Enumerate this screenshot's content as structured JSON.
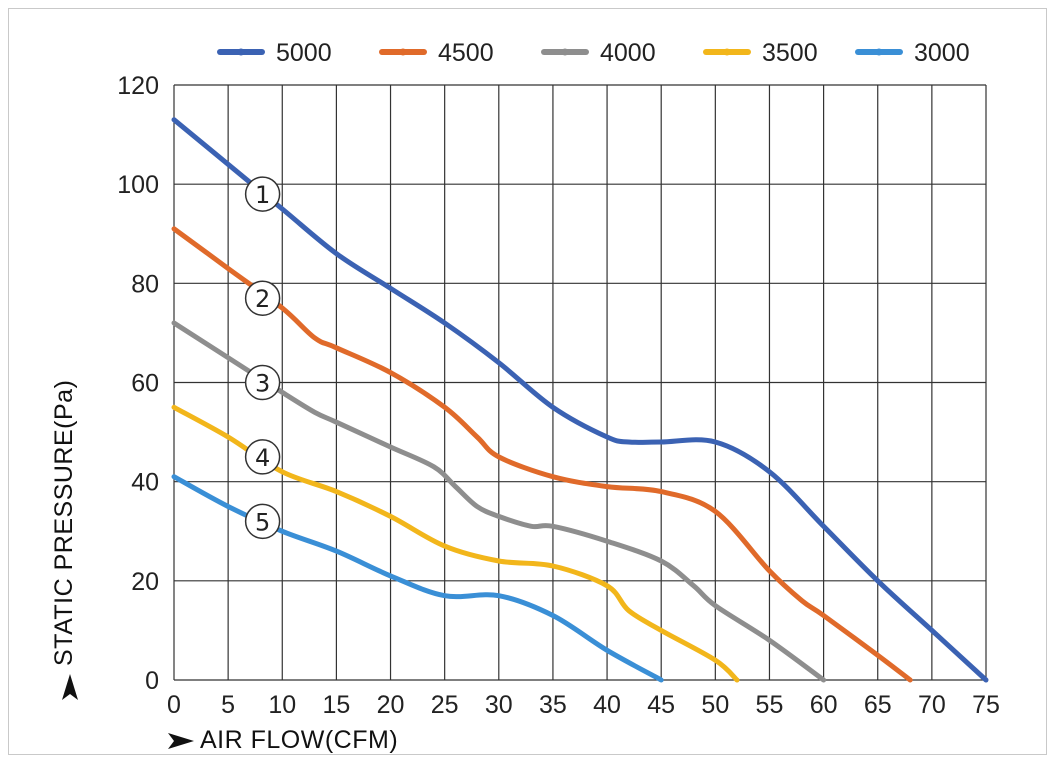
{
  "chart_data": {
    "type": "line",
    "xlabel": "AIR FLOW(CFM)",
    "ylabel": "STATIC PRESSURE(Pa)",
    "xlim": [
      0,
      75
    ],
    "ylim": [
      0,
      120
    ],
    "x_ticks": [
      "0",
      "5",
      "10",
      "15",
      "20",
      "25",
      "30",
      "35",
      "40",
      "45",
      "50",
      "55",
      "60",
      "65",
      "70",
      "75"
    ],
    "y_ticks": [
      "0",
      "20",
      "40",
      "60",
      "80",
      "100",
      "120"
    ],
    "grid": true,
    "legend_position": "top",
    "series": [
      {
        "name": "5000",
        "color": "#3b62b3",
        "marker": "①",
        "marker_x": 8,
        "marker_y": 98,
        "points": [
          [
            0,
            113
          ],
          [
            5,
            104
          ],
          [
            10,
            95
          ],
          [
            15,
            86
          ],
          [
            20,
            79
          ],
          [
            25,
            72
          ],
          [
            30,
            64
          ],
          [
            35,
            55
          ],
          [
            40,
            49
          ],
          [
            42,
            48
          ],
          [
            45,
            48
          ],
          [
            50,
            48
          ],
          [
            55,
            42
          ],
          [
            60,
            31
          ],
          [
            65,
            20
          ],
          [
            70,
            10
          ],
          [
            75,
            0
          ]
        ]
      },
      {
        "name": "4500",
        "color": "#e06a2a",
        "marker": "②",
        "marker_x": 8,
        "marker_y": 77,
        "points": [
          [
            0,
            91
          ],
          [
            5,
            83
          ],
          [
            10,
            75
          ],
          [
            13,
            69
          ],
          [
            15,
            67
          ],
          [
            20,
            62
          ],
          [
            25,
            55
          ],
          [
            28,
            49
          ],
          [
            30,
            45
          ],
          [
            35,
            41
          ],
          [
            40,
            39
          ],
          [
            45,
            38
          ],
          [
            50,
            34
          ],
          [
            55,
            22
          ],
          [
            58,
            16
          ],
          [
            60,
            13
          ],
          [
            65,
            5
          ],
          [
            68,
            0
          ]
        ]
      },
      {
        "name": "4000",
        "color": "#8e8e8e",
        "marker": "③",
        "marker_x": 8,
        "marker_y": 60,
        "points": [
          [
            0,
            72
          ],
          [
            5,
            65
          ],
          [
            10,
            58
          ],
          [
            13,
            54
          ],
          [
            15,
            52
          ],
          [
            20,
            47
          ],
          [
            24,
            43
          ],
          [
            26,
            39
          ],
          [
            28,
            35
          ],
          [
            30,
            33
          ],
          [
            33,
            31
          ],
          [
            35,
            31
          ],
          [
            40,
            28
          ],
          [
            45,
            24
          ],
          [
            48,
            19
          ],
          [
            50,
            15
          ],
          [
            55,
            8
          ],
          [
            60,
            0
          ]
        ]
      },
      {
        "name": "3500",
        "color": "#f2b61b",
        "marker": "④",
        "marker_x": 8,
        "marker_y": 45,
        "points": [
          [
            0,
            55
          ],
          [
            5,
            49
          ],
          [
            10,
            42
          ],
          [
            15,
            38
          ],
          [
            20,
            33
          ],
          [
            25,
            27
          ],
          [
            30,
            24
          ],
          [
            35,
            23
          ],
          [
            40,
            19
          ],
          [
            42,
            14
          ],
          [
            45,
            10
          ],
          [
            50,
            4
          ],
          [
            52,
            0
          ]
        ]
      },
      {
        "name": "3000",
        "color": "#3a8fd6",
        "marker": "⑤",
        "marker_x": 8,
        "marker_y": 32,
        "points": [
          [
            0,
            41
          ],
          [
            5,
            35
          ],
          [
            10,
            30
          ],
          [
            15,
            26
          ],
          [
            20,
            21
          ],
          [
            25,
            17
          ],
          [
            30,
            17
          ],
          [
            35,
            13
          ],
          [
            40,
            6
          ],
          [
            45,
            0
          ]
        ]
      }
    ]
  }
}
